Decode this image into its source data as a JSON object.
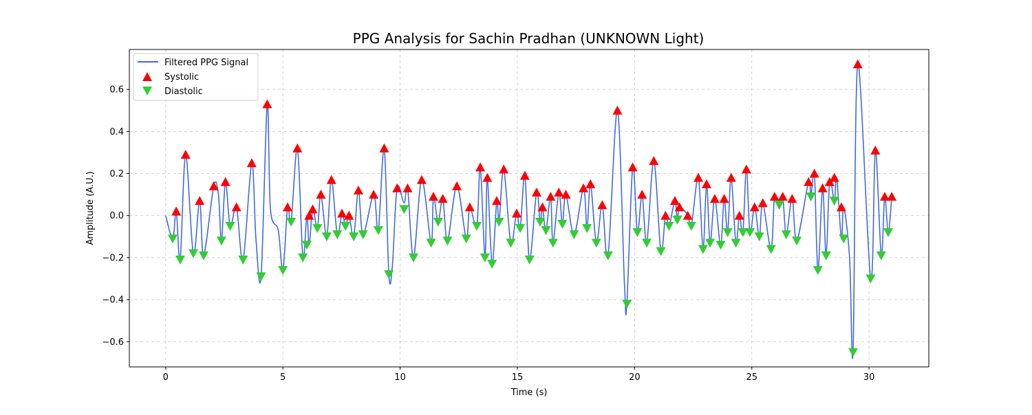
{
  "chart_data": {
    "type": "line",
    "title": "PPG Analysis for Sachin Pradhan (UNKNOWN Light)",
    "xlabel": "Time (s)",
    "ylabel": "Amplitude (A.U.)",
    "xlim": [
      -1.55,
      32.55
    ],
    "ylim": [
      -0.72,
      0.79
    ],
    "x_ticks": [
      0,
      5,
      10,
      15,
      20,
      25,
      30
    ],
    "y_ticks": [
      -0.6,
      -0.4,
      -0.2,
      0.0,
      0.2,
      0.4,
      0.6
    ],
    "x_tick_labels": [
      "0",
      "5",
      "10",
      "15",
      "20",
      "25",
      "30"
    ],
    "y_tick_labels": [
      "−0.6",
      "−0.4",
      "−0.2",
      "0.0",
      "0.2",
      "0.4",
      "0.6"
    ],
    "grid": true,
    "legend_position": "top-left",
    "series": [
      {
        "name": "Filtered PPG Signal",
        "kind": "line",
        "color": "#4169e1",
        "x": [
          0.0,
          0.3,
          0.45,
          0.62,
          0.85,
          1.18,
          1.45,
          1.62,
          2.05,
          2.25,
          2.38,
          2.55,
          2.75,
          3.02,
          3.3,
          3.67,
          3.85,
          4.07,
          4.33,
          4.47,
          4.8,
          5.0,
          5.2,
          5.35,
          5.62,
          5.85,
          6.02,
          6.12,
          6.27,
          6.47,
          6.62,
          6.87,
          7.07,
          7.32,
          7.52,
          7.67,
          7.82,
          8.02,
          8.22,
          8.42,
          8.87,
          9.07,
          9.32,
          9.52,
          9.67,
          9.87,
          10.17,
          10.32,
          10.57,
          10.92,
          11.32,
          11.42,
          11.62,
          11.82,
          12.02,
          12.42,
          12.82,
          12.97,
          13.27,
          13.42,
          13.62,
          13.72,
          13.92,
          14.12,
          14.22,
          14.42,
          14.72,
          14.97,
          15.12,
          15.32,
          15.52,
          15.82,
          15.97,
          16.07,
          16.22,
          16.42,
          16.52,
          16.77,
          16.92,
          17.07,
          17.42,
          17.82,
          17.97,
          18.12,
          18.37,
          18.62,
          18.87,
          19.27,
          19.57,
          19.67,
          19.92,
          20.12,
          20.32,
          20.52,
          20.82,
          21.12,
          21.32,
          21.47,
          21.72,
          21.82,
          21.92,
          22.27,
          22.42,
          22.72,
          22.92,
          23.07,
          23.22,
          23.42,
          23.67,
          23.82,
          23.97,
          24.12,
          24.32,
          24.47,
          24.62,
          24.77,
          24.92,
          25.12,
          25.32,
          25.47,
          25.82,
          25.97,
          26.17,
          26.32,
          26.47,
          26.72,
          26.92,
          27.42,
          27.52,
          27.67,
          27.82,
          28.02,
          28.17,
          28.32,
          28.52,
          28.62,
          28.82,
          28.92,
          29.17,
          29.32,
          29.52,
          30.07,
          30.27,
          30.52,
          30.67,
          30.82,
          30.97
        ],
        "y": [
          0.0,
          -0.11,
          0.02,
          -0.21,
          0.29,
          -0.18,
          0.07,
          -0.19,
          0.14,
          0.1,
          -0.12,
          0.16,
          -0.05,
          0.04,
          -0.21,
          0.25,
          -0.11,
          -0.29,
          0.53,
          0.03,
          -0.07,
          -0.26,
          0.04,
          -0.03,
          0.32,
          -0.2,
          0.0,
          -0.14,
          0.03,
          -0.06,
          0.1,
          -0.1,
          0.17,
          -0.09,
          0.01,
          -0.05,
          0.0,
          -0.1,
          0.12,
          -0.09,
          0.1,
          -0.07,
          0.32,
          -0.28,
          -0.24,
          0.13,
          0.06,
          0.13,
          -0.2,
          0.17,
          -0.13,
          0.09,
          -0.03,
          0.08,
          -0.12,
          0.14,
          -0.11,
          0.04,
          -0.05,
          0.23,
          -0.2,
          0.18,
          -0.23,
          0.07,
          -0.03,
          0.22,
          -0.13,
          0.01,
          -0.06,
          0.19,
          -0.21,
          0.11,
          -0.03,
          0.04,
          -0.07,
          0.09,
          -0.13,
          0.11,
          -0.04,
          0.1,
          -0.09,
          0.13,
          -0.06,
          0.15,
          -0.13,
          0.05,
          -0.19,
          0.5,
          -0.33,
          -0.42,
          0.23,
          -0.08,
          0.1,
          -0.13,
          0.26,
          -0.17,
          0.0,
          -0.05,
          0.07,
          -0.02,
          0.04,
          0.0,
          -0.05,
          0.18,
          -0.16,
          0.15,
          -0.13,
          0.08,
          -0.14,
          0.08,
          -0.08,
          0.18,
          -0.13,
          0.0,
          -0.08,
          0.22,
          -0.08,
          0.04,
          -0.1,
          0.06,
          -0.16,
          0.09,
          0.05,
          0.09,
          -0.09,
          0.08,
          -0.12,
          0.16,
          0.09,
          0.2,
          -0.26,
          0.13,
          -0.19,
          0.16,
          0.07,
          0.18,
          -0.11,
          0.04,
          -0.2,
          -0.65,
          0.72,
          -0.3,
          0.31,
          -0.19,
          0.09,
          -0.08,
          0.09
        ]
      },
      {
        "name": "Systolic",
        "kind": "markers",
        "marker": "triangle-up",
        "color": "#ff0000",
        "x": [
          0.45,
          0.85,
          1.45,
          2.05,
          2.55,
          3.02,
          3.67,
          4.33,
          5.2,
          5.62,
          6.12,
          6.27,
          6.62,
          7.07,
          7.52,
          7.82,
          8.22,
          8.87,
          9.32,
          9.87,
          10.32,
          10.92,
          11.42,
          11.82,
          12.42,
          12.97,
          13.42,
          13.72,
          14.12,
          14.42,
          14.97,
          15.32,
          15.82,
          16.07,
          16.42,
          16.77,
          17.07,
          17.82,
          18.12,
          18.62,
          19.27,
          19.92,
          20.32,
          20.82,
          21.32,
          21.72,
          21.92,
          22.27,
          22.72,
          23.07,
          23.42,
          23.82,
          24.12,
          24.47,
          24.77,
          25.12,
          25.47,
          25.97,
          26.32,
          26.72,
          27.42,
          27.67,
          28.02,
          28.32,
          28.52,
          28.82,
          29.52,
          30.27,
          30.67,
          30.97
        ],
        "y": [
          0.02,
          0.29,
          0.07,
          0.14,
          0.16,
          0.04,
          0.25,
          0.53,
          0.04,
          0.32,
          0.0,
          0.03,
          0.1,
          0.17,
          0.01,
          0.0,
          0.12,
          0.1,
          0.32,
          0.13,
          0.13,
          0.17,
          0.09,
          0.08,
          0.14,
          0.04,
          0.23,
          0.18,
          0.07,
          0.22,
          0.01,
          0.19,
          0.11,
          0.04,
          0.09,
          0.11,
          0.1,
          0.13,
          0.15,
          0.05,
          0.5,
          0.23,
          0.1,
          0.26,
          0.0,
          0.07,
          0.04,
          0.0,
          0.18,
          0.15,
          0.08,
          0.08,
          0.18,
          0.0,
          0.22,
          0.04,
          0.06,
          0.09,
          0.09,
          0.08,
          0.16,
          0.2,
          0.13,
          0.16,
          0.18,
          0.04,
          0.72,
          0.31,
          0.09,
          0.09
        ]
      },
      {
        "name": "Diastolic",
        "kind": "markers",
        "marker": "triangle-down",
        "color": "#32cd32",
        "x": [
          0.3,
          0.62,
          1.18,
          1.62,
          2.38,
          2.75,
          3.3,
          4.07,
          5.0,
          5.35,
          5.85,
          6.02,
          6.47,
          6.87,
          7.32,
          7.67,
          8.02,
          8.42,
          9.07,
          9.52,
          10.17,
          10.57,
          11.32,
          11.62,
          12.02,
          12.82,
          13.27,
          13.62,
          13.92,
          14.22,
          14.72,
          15.12,
          15.52,
          15.97,
          16.22,
          16.52,
          16.92,
          17.42,
          17.97,
          18.37,
          18.87,
          19.67,
          20.12,
          20.52,
          21.12,
          21.47,
          21.82,
          22.42,
          22.92,
          23.22,
          23.67,
          23.97,
          24.32,
          24.62,
          24.92,
          25.32,
          25.82,
          26.17,
          26.47,
          26.92,
          27.52,
          27.82,
          28.17,
          28.52,
          28.92,
          29.32,
          30.07,
          30.52,
          30.82
        ],
        "y": [
          -0.11,
          -0.21,
          -0.18,
          -0.19,
          -0.12,
          -0.05,
          -0.21,
          -0.29,
          -0.26,
          -0.03,
          -0.2,
          -0.14,
          -0.06,
          -0.1,
          -0.09,
          -0.05,
          -0.1,
          -0.09,
          -0.07,
          -0.28,
          0.03,
          -0.2,
          -0.13,
          -0.03,
          -0.12,
          -0.11,
          -0.05,
          -0.2,
          -0.23,
          -0.03,
          -0.13,
          -0.06,
          -0.21,
          -0.03,
          -0.07,
          -0.13,
          -0.04,
          -0.09,
          -0.06,
          -0.13,
          -0.19,
          -0.42,
          -0.08,
          -0.13,
          -0.17,
          -0.05,
          -0.02,
          -0.05,
          -0.16,
          -0.13,
          -0.14,
          -0.08,
          -0.13,
          -0.08,
          -0.08,
          -0.1,
          -0.16,
          0.05,
          -0.09,
          -0.12,
          0.09,
          -0.26,
          -0.19,
          0.07,
          -0.11,
          -0.65,
          -0.3,
          -0.19,
          -0.08
        ]
      }
    ]
  }
}
